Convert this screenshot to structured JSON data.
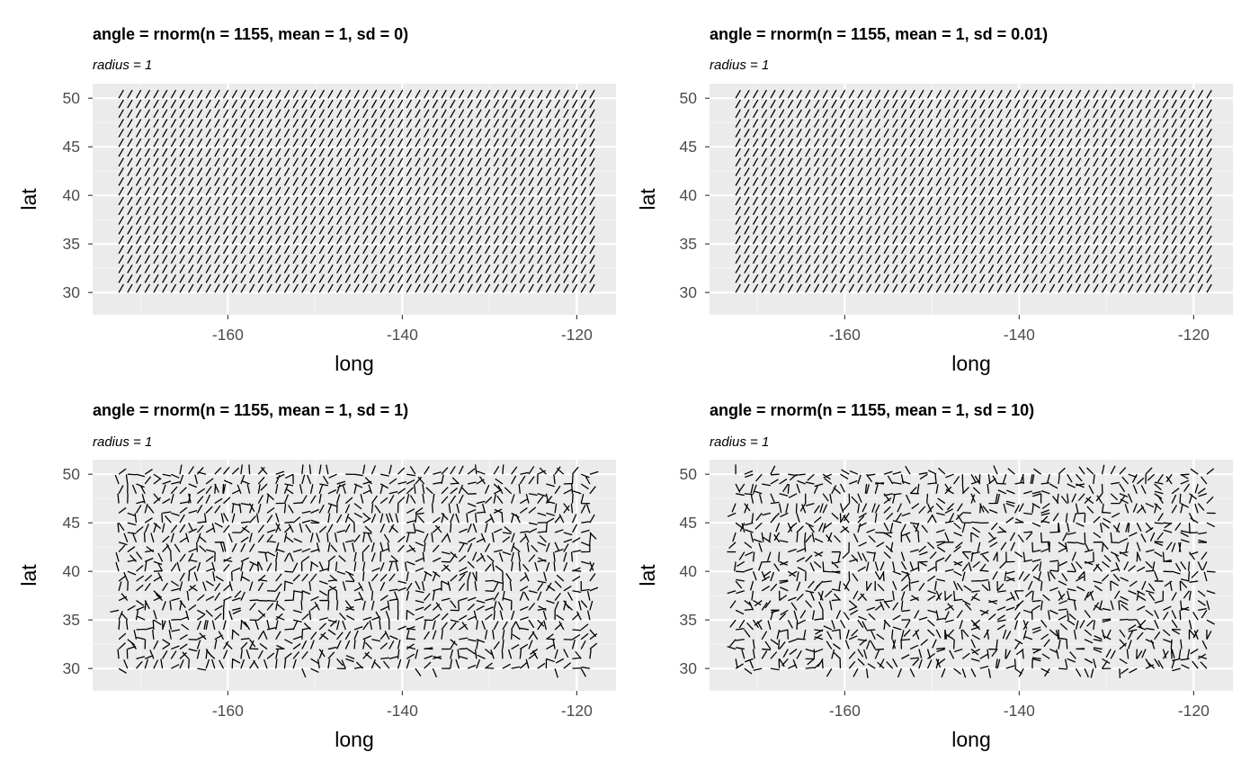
{
  "colors": {
    "panel_background": "#ebebeb",
    "grid_major": "#ffffff",
    "grid_minor": "#f5f5f5",
    "tick_label": "#4d4d4d",
    "segment": "#000000"
  },
  "chart_data": [
    {
      "type": "scatter",
      "mark": "spoke",
      "title": "angle = rnorm(n = 1155, mean = 1, sd = 0)",
      "subtitle": "radius = 1",
      "xlabel": "long",
      "ylabel": "lat",
      "xlim": [
        -175.5,
        -115.5
      ],
      "ylim": [
        27.7,
        51.5
      ],
      "xticks": [
        -160,
        -140,
        -120
      ],
      "xtick_labels": [
        "-160",
        "-140",
        "-120"
      ],
      "yticks": [
        30,
        35,
        40,
        45,
        50
      ],
      "ytick_labels": [
        "30",
        "35",
        "40",
        "45",
        "50"
      ],
      "grid": true,
      "grid_x": {
        "longitude_start": -172.5,
        "longitude_end": -118.5,
        "longitude_step": 1,
        "latitude_start": 30,
        "latitude_end": 50,
        "latitude_step": 1
      },
      "n": 1155,
      "angle_mean": 1,
      "angle_sd": 0,
      "radius": 1
    },
    {
      "type": "scatter",
      "mark": "spoke",
      "title": "angle = rnorm(n = 1155, mean = 1, sd = 0.01)",
      "subtitle": "radius = 1",
      "xlabel": "long",
      "ylabel": "lat",
      "xlim": [
        -175.5,
        -115.5
      ],
      "ylim": [
        27.7,
        51.5
      ],
      "xticks": [
        -160,
        -140,
        -120
      ],
      "xtick_labels": [
        "-160",
        "-140",
        "-120"
      ],
      "yticks": [
        30,
        35,
        40,
        45,
        50
      ],
      "ytick_labels": [
        "30",
        "35",
        "40",
        "45",
        "50"
      ],
      "grid": true,
      "grid_x": {
        "longitude_start": -172.5,
        "longitude_end": -118.5,
        "longitude_step": 1,
        "latitude_start": 30,
        "latitude_end": 50,
        "latitude_step": 1
      },
      "n": 1155,
      "angle_mean": 1,
      "angle_sd": 0.01,
      "radius": 1
    },
    {
      "type": "scatter",
      "mark": "spoke",
      "title": "angle = rnorm(n = 1155, mean = 1, sd = 1)",
      "subtitle": "radius = 1",
      "xlabel": "long",
      "ylabel": "lat",
      "xlim": [
        -175.5,
        -115.5
      ],
      "ylim": [
        27.7,
        51.5
      ],
      "xticks": [
        -160,
        -140,
        -120
      ],
      "xtick_labels": [
        "-160",
        "-140",
        "-120"
      ],
      "yticks": [
        30,
        35,
        40,
        45,
        50
      ],
      "ytick_labels": [
        "30",
        "35",
        "40",
        "45",
        "50"
      ],
      "grid": true,
      "grid_x": {
        "longitude_start": -172.5,
        "longitude_end": -118.5,
        "longitude_step": 1,
        "latitude_start": 30,
        "latitude_end": 50,
        "latitude_step": 1
      },
      "n": 1155,
      "angle_mean": 1,
      "angle_sd": 1,
      "radius": 1
    },
    {
      "type": "scatter",
      "mark": "spoke",
      "title": "angle = rnorm(n = 1155, mean = 1, sd = 10)",
      "subtitle": "radius = 1",
      "xlabel": "long",
      "ylabel": "lat",
      "xlim": [
        -175.5,
        -115.5
      ],
      "ylim": [
        27.7,
        51.5
      ],
      "xticks": [
        -160,
        -140,
        -120
      ],
      "xtick_labels": [
        "-160",
        "-140",
        "-120"
      ],
      "yticks": [
        30,
        35,
        40,
        45,
        50
      ],
      "ytick_labels": [
        "30",
        "35",
        "40",
        "45",
        "50"
      ],
      "grid": true,
      "grid_x": {
        "longitude_start": -172.5,
        "longitude_end": -118.5,
        "longitude_step": 1,
        "latitude_start": 30,
        "latitude_end": 50,
        "latitude_step": 1
      },
      "n": 1155,
      "angle_mean": 1,
      "angle_sd": 10,
      "radius": 1
    }
  ]
}
